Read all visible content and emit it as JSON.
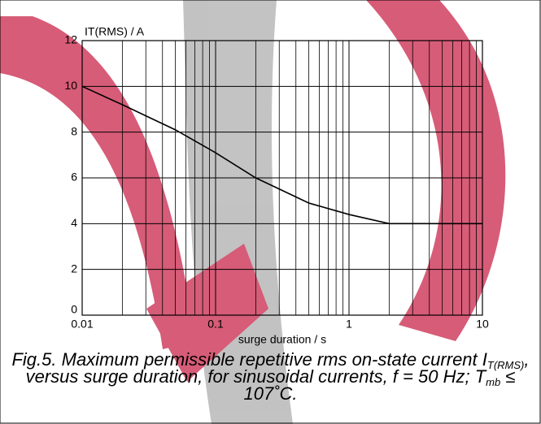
{
  "chart_data": {
    "type": "line",
    "y_label": "IT(RMS) / A",
    "x_label": "surge duration / s",
    "caption": [
      "Fig.5.   Maximum permissible repetitive rms on-state current I",
      "T(RMS)",
      ", versus surge duration, for sinusoidal currents, f = 50 Hz; T",
      "mb",
      " ≤ 107˚C."
    ],
    "xscale": "log",
    "x": [
      0.01,
      0.02,
      0.05,
      0.1,
      0.2,
      0.5,
      1,
      2,
      5,
      10
    ],
    "series": [
      {
        "color": "#000000",
        "values": [
          10,
          9.2,
          8.1,
          7.1,
          6.0,
          4.9,
          4.4,
          4.0,
          4.0,
          4.0
        ]
      }
    ],
    "xlim": [
      0.01,
      10
    ],
    "ylim": [
      0,
      12
    ],
    "xticks": [
      0.01,
      0.1,
      1,
      10
    ],
    "xminorticks": [
      0.02,
      0.03,
      0.04,
      0.05,
      0.06,
      0.07,
      0.08,
      0.09,
      0.2,
      0.3,
      0.4,
      0.5,
      0.6,
      0.7,
      0.8,
      0.9,
      2,
      3,
      4,
      5,
      6,
      7,
      8,
      9
    ],
    "yticks": [
      0,
      2,
      4,
      6,
      8,
      10,
      12
    ],
    "grid": true
  }
}
